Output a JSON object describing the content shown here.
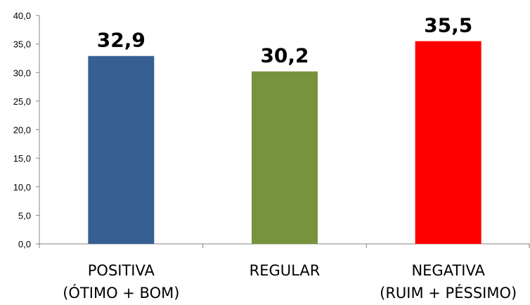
{
  "chart_data": {
    "type": "bar",
    "title": "",
    "xlabel": "",
    "ylabel": "",
    "ylim": [
      0,
      40
    ],
    "ytick_step": 5,
    "ytick_labels": [
      "0,0",
      "5,0",
      "10,0",
      "15,0",
      "20,0",
      "25,0",
      "30,0",
      "35,0",
      "40,0"
    ],
    "grid": false,
    "legend": "none",
    "categories": [
      [
        "POSITIVA",
        "(ÓTIMO + BOM)"
      ],
      [
        "REGULAR"
      ],
      [
        "NEGATIVA",
        "(RUIM + PÉSSIMO)"
      ]
    ],
    "values": [
      32.9,
      30.2,
      35.5
    ],
    "data_labels": [
      "32,9",
      "30,2",
      "35,5"
    ],
    "colors": [
      "#376092",
      "#77933C",
      "#FF0000"
    ],
    "axis_color": "#868686"
  }
}
